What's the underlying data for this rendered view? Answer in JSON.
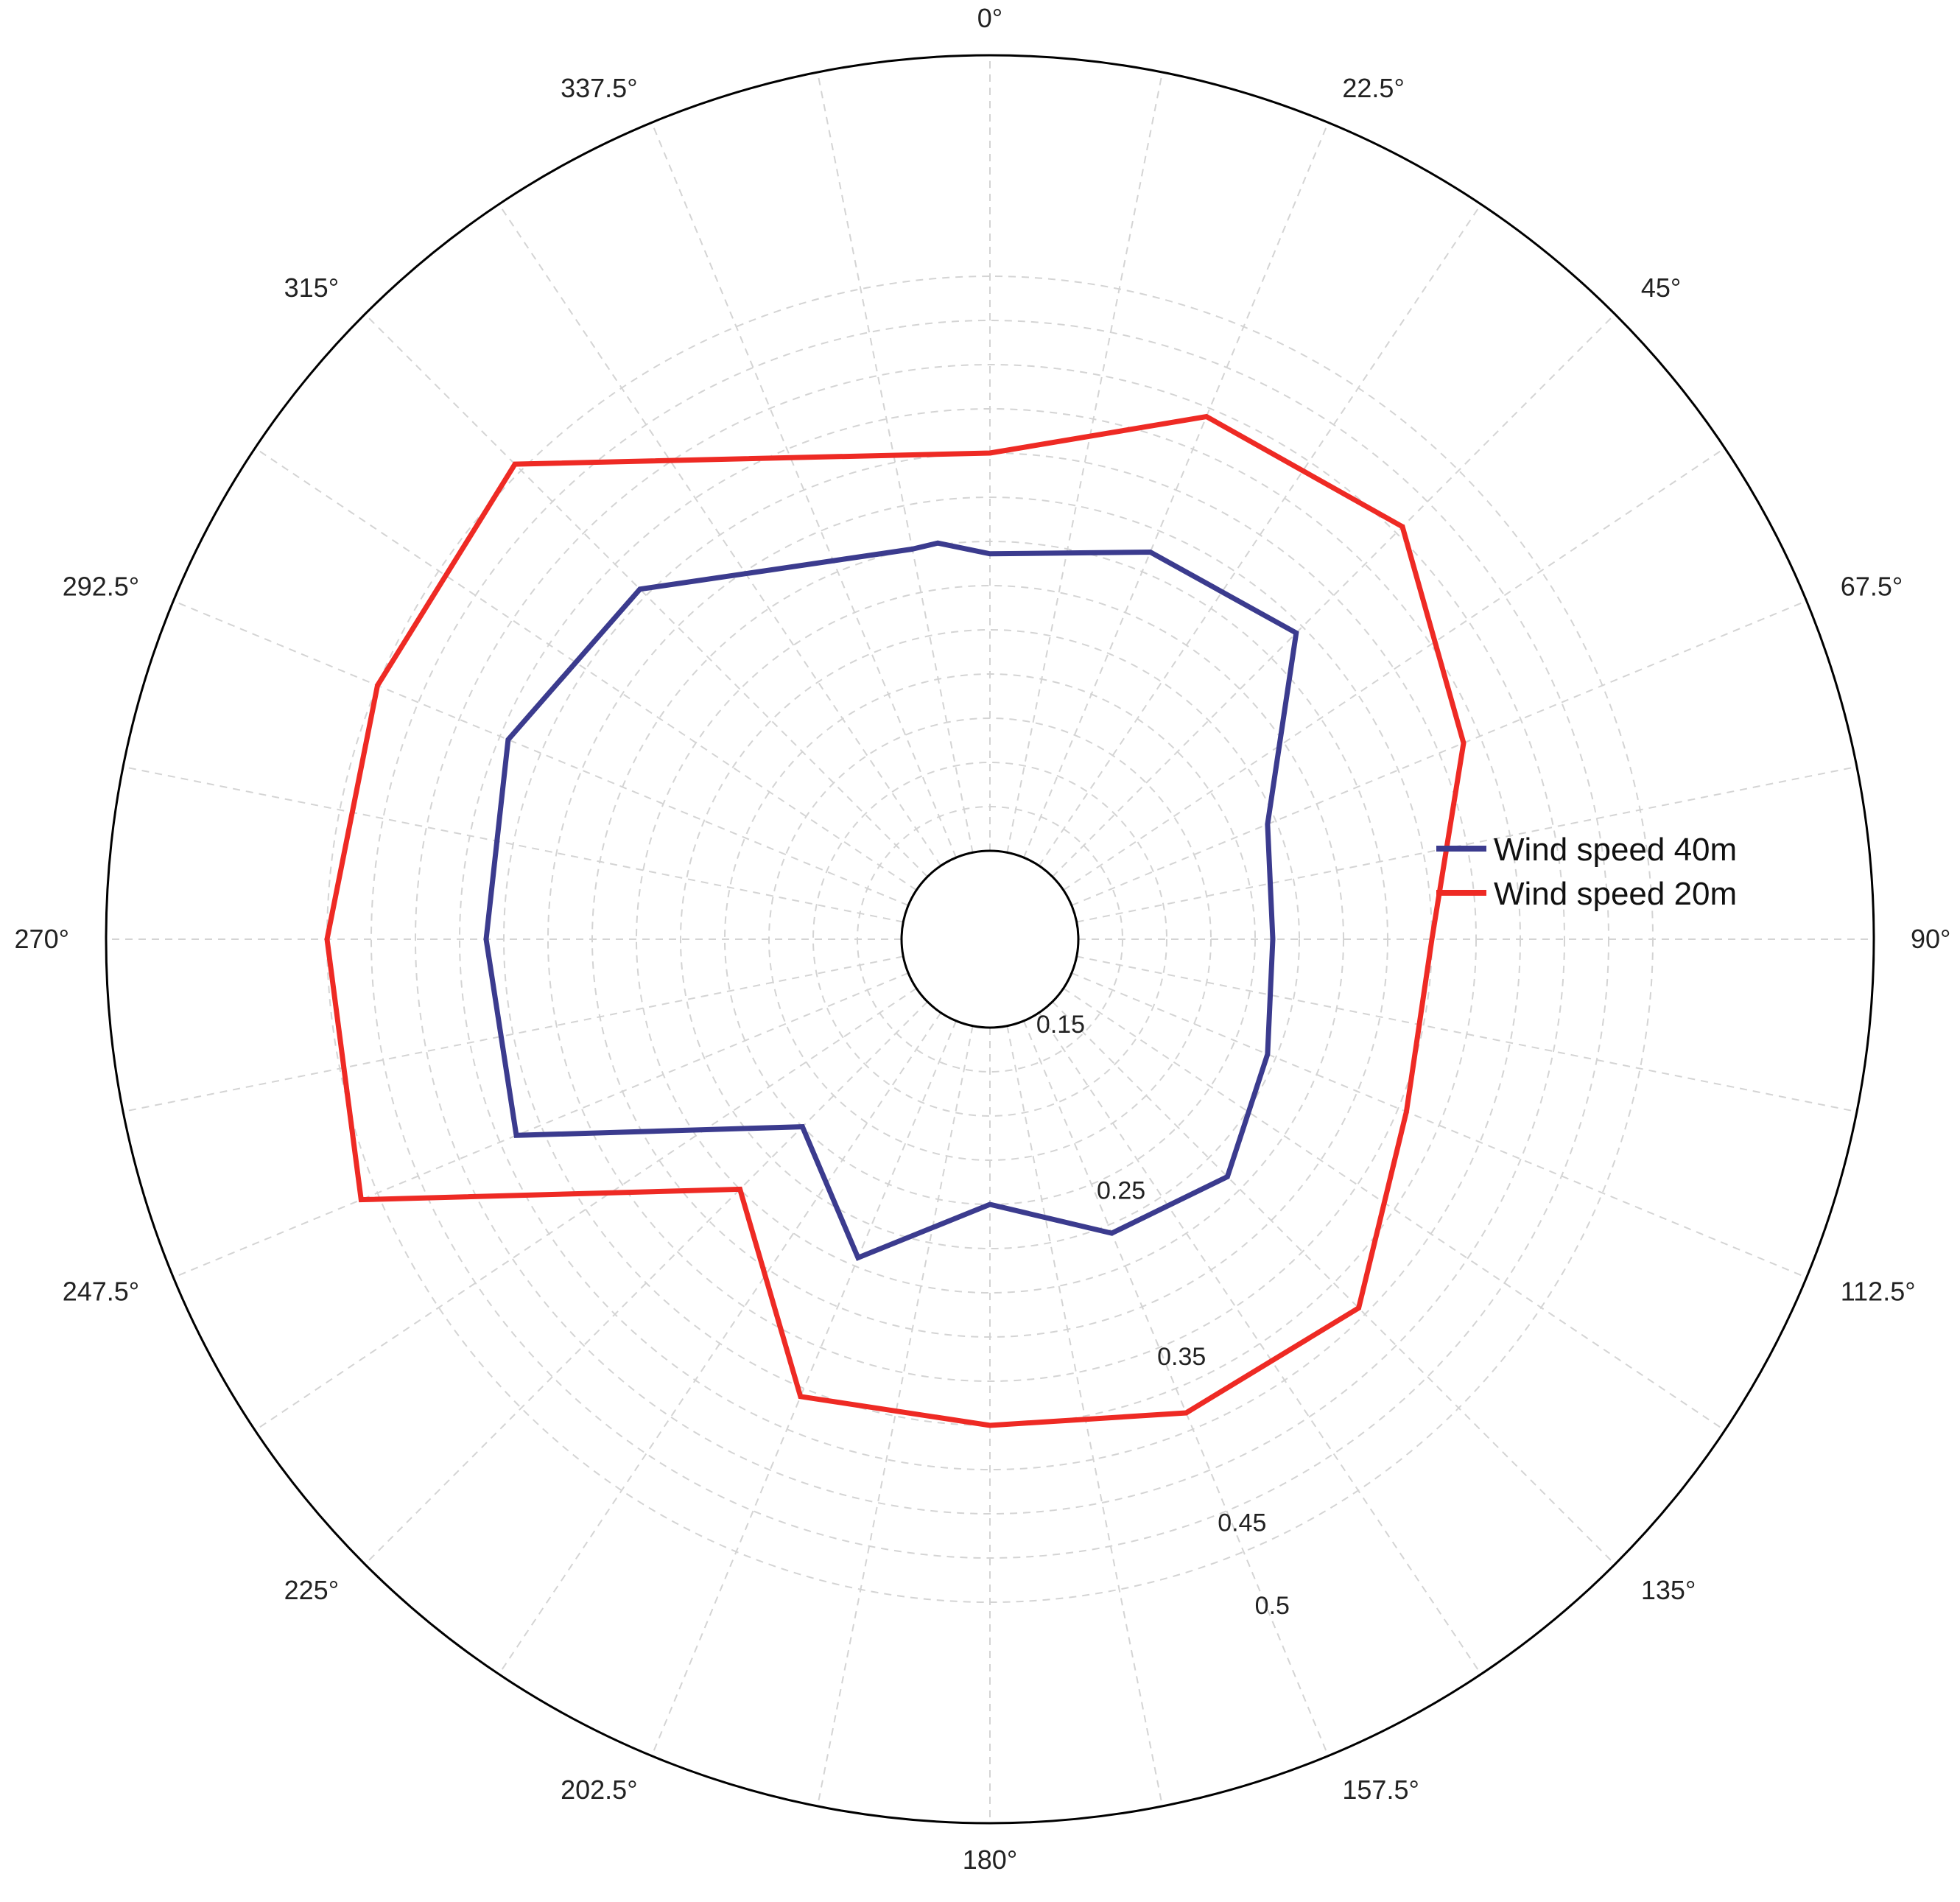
{
  "chart_data": {
    "type": "polar-line",
    "angle_labels": [
      "0°",
      "22.5°",
      "45°",
      "67.5°",
      "90°",
      "112.5°",
      "135°",
      "157.5°",
      "180°",
      "202.5°",
      "225°",
      "247.5°",
      "270°",
      "292.5°",
      "315°",
      "337.5°"
    ],
    "radial_tick_labels": [
      {
        "value": 0.15,
        "label": "0.15"
      },
      {
        "value": 0.25,
        "label": "0.25"
      },
      {
        "value": 0.35,
        "label": "0.35"
      },
      {
        "value": 0.45,
        "label": "0.45"
      },
      {
        "value": 0.5,
        "label": "0.5"
      }
    ],
    "radial_range": [
      0.1,
      0.5
    ],
    "inner_hole_value": 0.15,
    "grid_ring_values": [
      0.15,
      0.175,
      0.2,
      0.225,
      0.25,
      0.275,
      0.3,
      0.325,
      0.35,
      0.375,
      0.4,
      0.425,
      0.45,
      0.475
    ],
    "grid_spoke_angles": [
      0,
      11.25,
      22.5,
      33.75,
      45,
      56.25,
      67.5,
      78.75,
      90,
      101.25,
      112.5,
      123.75,
      135,
      146.25,
      157.5,
      168.75,
      180,
      191.25,
      202.5,
      213.75,
      225,
      236.25,
      247.5,
      258.75,
      270,
      281.25,
      292.5,
      303.75,
      315,
      326.25,
      337.5,
      348.75
    ],
    "grid": true,
    "legend_position": "right",
    "series": [
      {
        "name": "Wind speed 40m",
        "color": "#3b3b8e",
        "points": [
          {
            "angle": 348.75,
            "r": 0.325
          },
          {
            "angle": 352.5,
            "r": 0.326
          },
          {
            "angle": 0,
            "r": 0.318
          },
          {
            "angle": 22.5,
            "r": 0.337
          },
          {
            "angle": 45,
            "r": 0.345
          },
          {
            "angle": 67.5,
            "r": 0.27
          },
          {
            "angle": 90,
            "r": 0.26
          },
          {
            "angle": 112.5,
            "r": 0.27
          },
          {
            "angle": 135,
            "r": 0.29
          },
          {
            "angle": 157.5,
            "r": 0.28
          },
          {
            "angle": 180,
            "r": 0.25
          },
          {
            "angle": 202.5,
            "r": 0.295
          },
          {
            "angle": 225,
            "r": 0.25
          },
          {
            "angle": 247.5,
            "r": 0.39
          },
          {
            "angle": 270,
            "r": 0.385
          },
          {
            "angle": 292.5,
            "r": 0.395
          },
          {
            "angle": 315,
            "r": 0.38
          }
        ]
      },
      {
        "name": "Wind speed 20m",
        "color": "#ee2a24",
        "points": [
          {
            "angle": 0,
            "r": 0.375
          },
          {
            "angle": 22.5,
            "r": 0.42
          },
          {
            "angle": 45,
            "r": 0.43
          },
          {
            "angle": 67.5,
            "r": 0.39
          },
          {
            "angle": 90,
            "r": 0.35
          },
          {
            "angle": 112.5,
            "r": 0.355
          },
          {
            "angle": 135,
            "r": 0.395
          },
          {
            "angle": 157.5,
            "r": 0.39
          },
          {
            "angle": 180,
            "r": 0.375
          },
          {
            "angle": 202.5,
            "r": 0.38
          },
          {
            "angle": 225,
            "r": 0.3
          },
          {
            "angle": 247.5,
            "r": 0.485
          },
          {
            "angle": 270,
            "r": 0.475
          },
          {
            "angle": 292.5,
            "r": 0.475
          },
          {
            "angle": 315,
            "r": 0.48
          }
        ]
      }
    ]
  }
}
